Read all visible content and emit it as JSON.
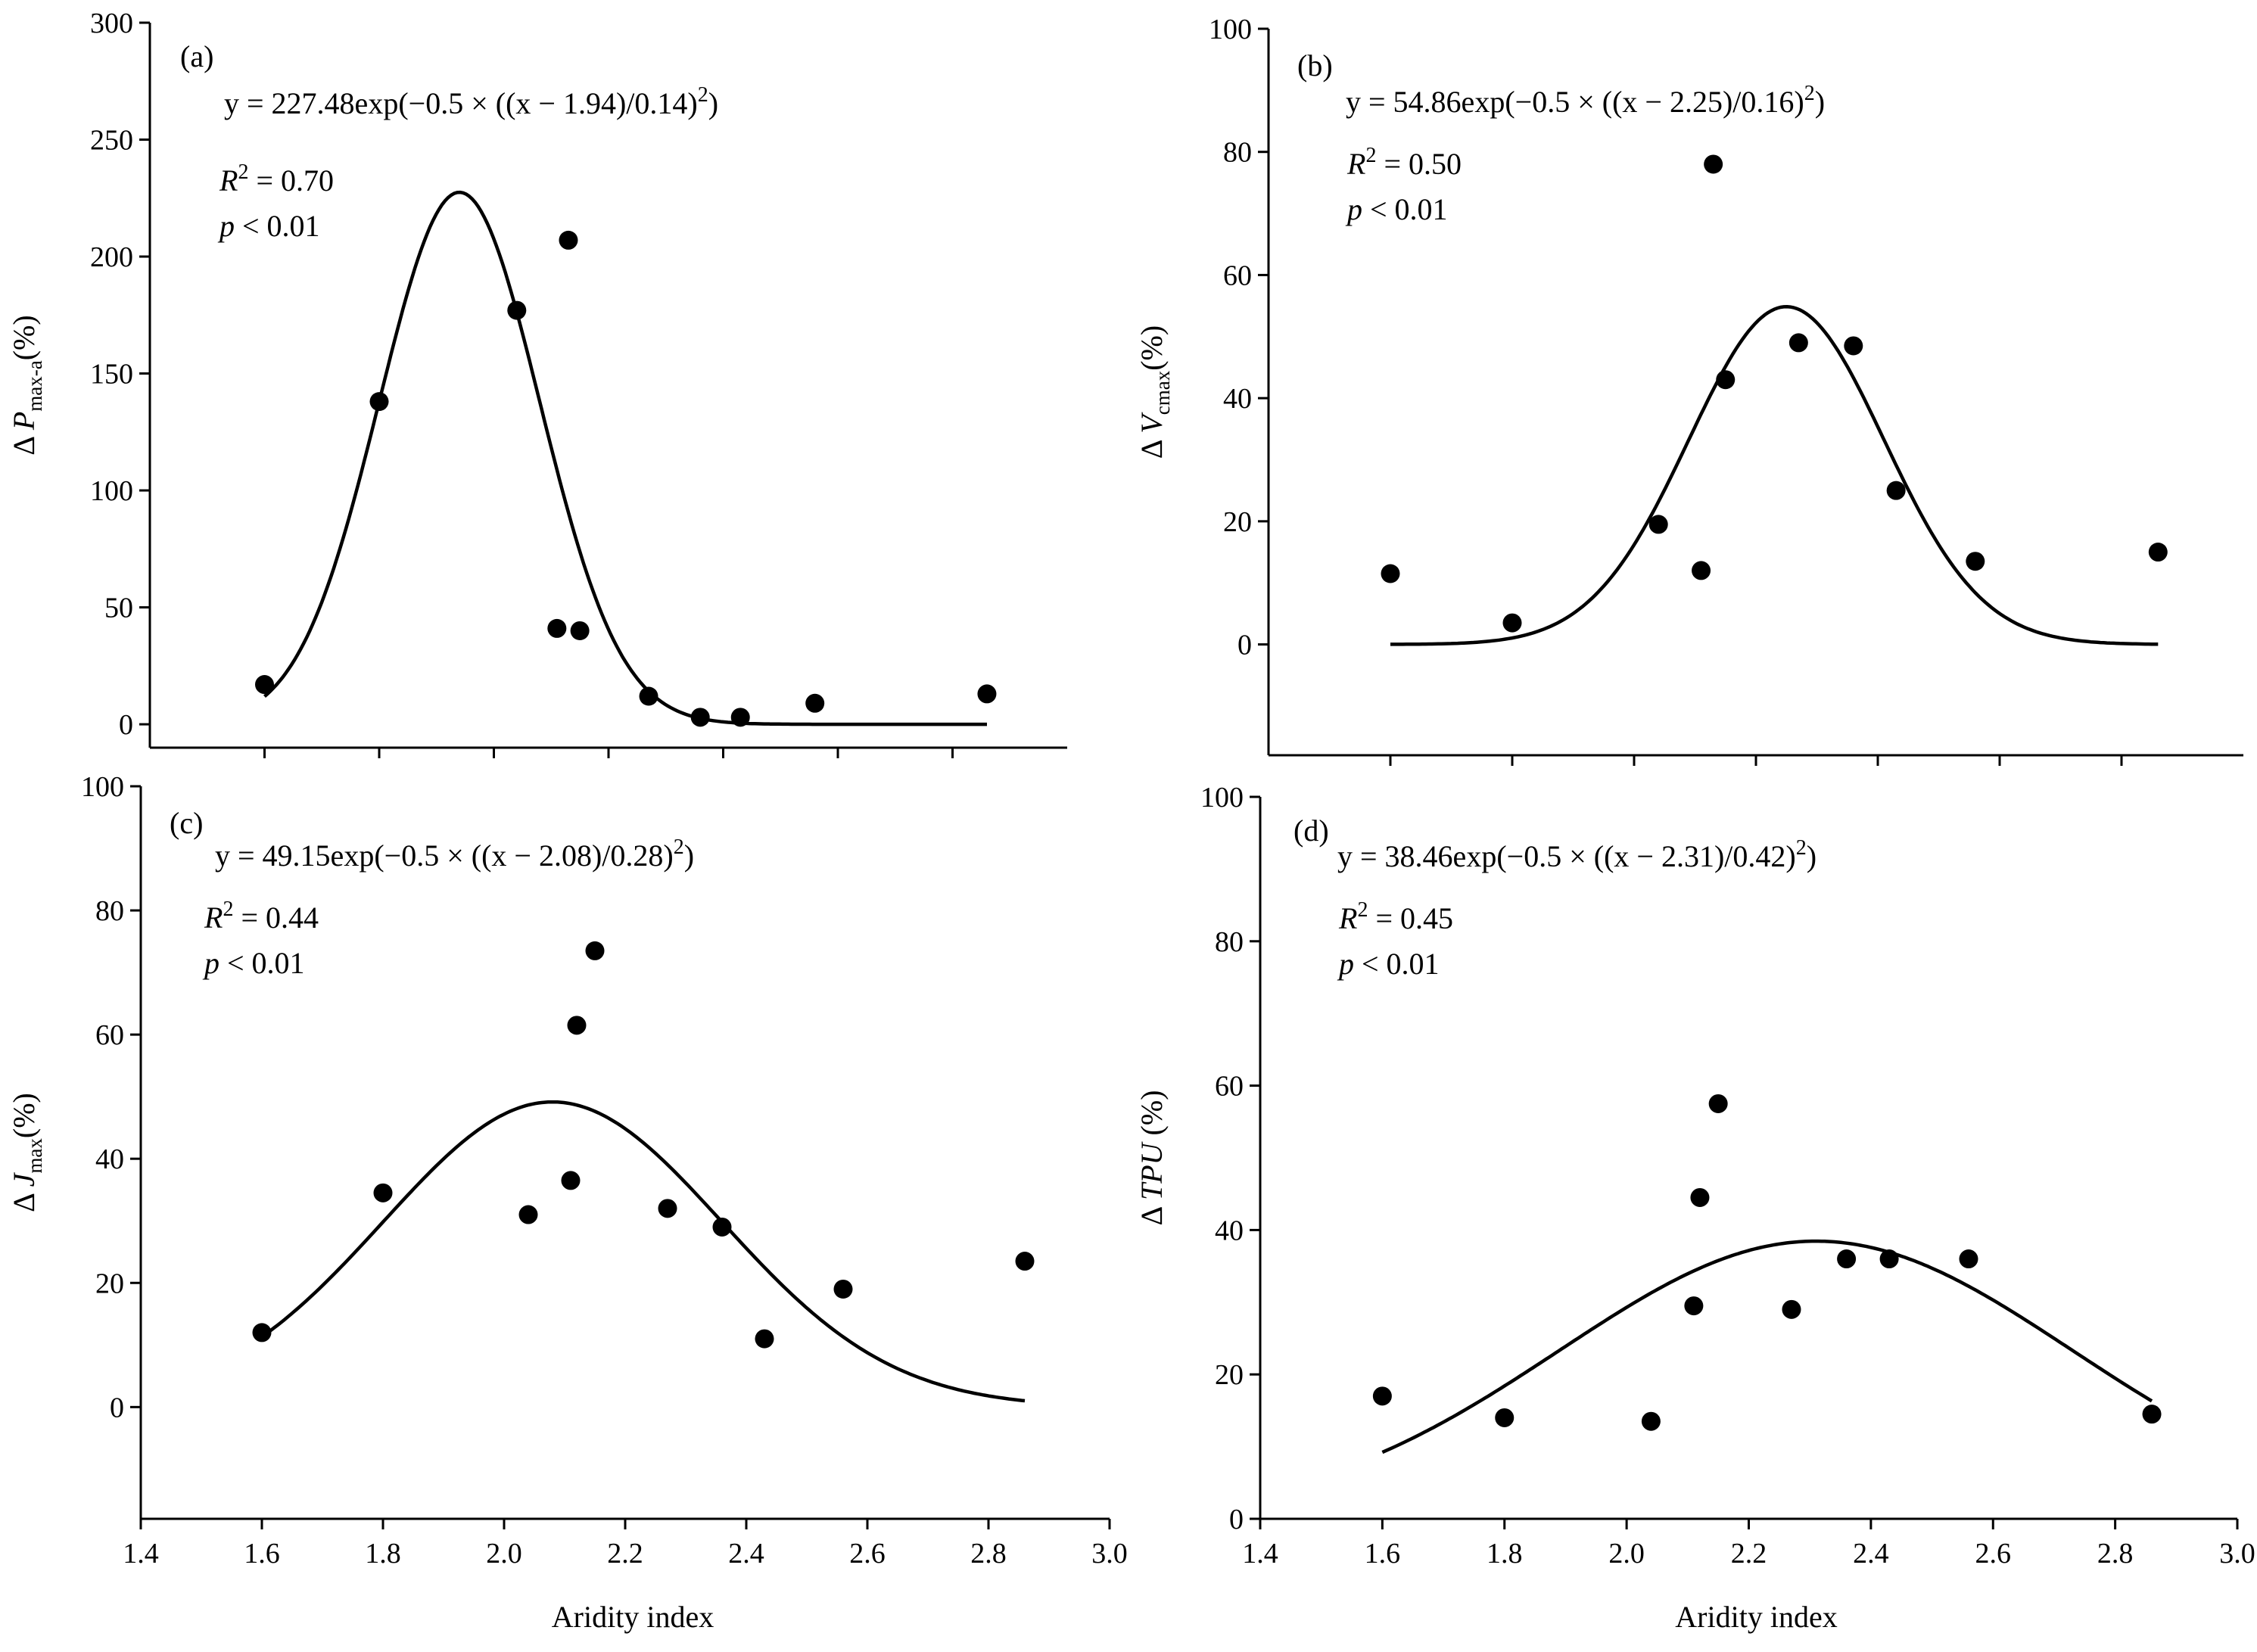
{
  "figure": {
    "x_axis_label": "Aridity index"
  },
  "chart_data": [
    {
      "type": "scatter",
      "panel": "(a)",
      "ylabel_symbol": "P",
      "ylabel_subscript": "max-a",
      "ylabel_unit": "(%)",
      "equation": "y = 227.48exp(−0.5 × ((x − 1.94)/0.14)",
      "equation_exponent": "2",
      "equation_close": ")",
      "r2_value": " = 0.70",
      "p_value": " < 0.01",
      "fit": {
        "a": 227.48,
        "b": 1.94,
        "c": 0.14,
        "x_start": 1.6,
        "x_end": 2.86
      },
      "xlim": [
        1.4,
        3.0
      ],
      "ylim": [
        -10,
        300
      ],
      "yticks": [
        0,
        50,
        100,
        150,
        200,
        250,
        300
      ],
      "ytick_labels": [
        "0",
        "50",
        "100",
        "150",
        "200",
        "250",
        "300"
      ],
      "xticks": [
        1.6,
        1.8,
        2.0,
        2.2,
        2.4,
        2.6,
        2.8
      ],
      "xtick_labels": [],
      "points": [
        [
          1.6,
          17
        ],
        [
          1.8,
          138
        ],
        [
          2.04,
          177
        ],
        [
          2.11,
          41
        ],
        [
          2.13,
          207
        ],
        [
          2.15,
          40
        ],
        [
          2.27,
          12
        ],
        [
          2.36,
          3
        ],
        [
          2.43,
          3
        ],
        [
          2.56,
          9
        ],
        [
          2.86,
          13
        ]
      ]
    },
    {
      "type": "scatter",
      "panel": "(b)",
      "ylabel_symbol": "V",
      "ylabel_subscript": "cmax",
      "ylabel_unit": "(%)",
      "equation": "y = 54.86exp(−0.5 × ((x − 2.25)/0.16)",
      "equation_exponent": "2",
      "equation_close": ")",
      "r2_value": " = 0.50",
      "p_value": " < 0.01",
      "fit": {
        "a": 54.86,
        "b": 2.25,
        "c": 0.16,
        "x_start": 1.6,
        "x_end": 2.86
      },
      "xlim": [
        1.4,
        3.0
      ],
      "ylim": [
        -18,
        100
      ],
      "yticks": [
        0,
        20,
        40,
        60,
        80,
        100
      ],
      "ytick_labels": [
        "0",
        "20",
        "40",
        "60",
        "80",
        "100"
      ],
      "xticks": [
        1.6,
        1.8,
        2.0,
        2.2,
        2.4,
        2.6,
        2.8
      ],
      "xtick_labels": [],
      "points": [
        [
          1.6,
          11.5
        ],
        [
          1.8,
          3.5
        ],
        [
          2.04,
          19.5
        ],
        [
          2.11,
          12
        ],
        [
          2.13,
          78
        ],
        [
          2.15,
          43
        ],
        [
          2.27,
          49
        ],
        [
          2.36,
          48.5
        ],
        [
          2.43,
          25
        ],
        [
          2.56,
          13.5
        ],
        [
          2.86,
          15
        ]
      ]
    },
    {
      "type": "scatter",
      "panel": "(c)",
      "ylabel_symbol": "J",
      "ylabel_subscript": "max",
      "ylabel_unit": "(%)",
      "equation": "y = 49.15exp(−0.5 × ((x − 2.08)/0.28)",
      "equation_exponent": "2",
      "equation_close": ")",
      "r2_value": " = 0.44",
      "p_value": " < 0.01",
      "fit": {
        "a": 49.15,
        "b": 2.08,
        "c": 0.28,
        "x_start": 1.6,
        "x_end": 2.86
      },
      "xlim": [
        1.4,
        3.0
      ],
      "ylim": [
        -18,
        100
      ],
      "yticks": [
        0,
        20,
        40,
        60,
        80,
        100
      ],
      "ytick_labels": [
        "0",
        "20",
        "40",
        "60",
        "80",
        "100"
      ],
      "xticks": [
        1.4,
        1.6,
        1.8,
        2.0,
        2.2,
        2.4,
        2.6,
        2.8,
        3.0
      ],
      "xtick_labels": [
        "1.4",
        "1.6",
        "1.8",
        "2.0",
        "2.2",
        "2.4",
        "2.6",
        "2.8",
        "3.0"
      ],
      "points": [
        [
          1.6,
          12
        ],
        [
          1.8,
          34.5
        ],
        [
          2.04,
          31
        ],
        [
          2.11,
          36.5
        ],
        [
          2.12,
          61.5
        ],
        [
          2.15,
          73.5
        ],
        [
          2.27,
          32
        ],
        [
          2.36,
          29
        ],
        [
          2.43,
          11
        ],
        [
          2.56,
          19
        ],
        [
          2.86,
          23.5
        ]
      ]
    },
    {
      "type": "scatter",
      "panel": "(d)",
      "ylabel_symbol": "TPU",
      "ylabel_subscript": "",
      "ylabel_unit": " (%)",
      "equation": "y = 38.46exp(−0.5 × ((x − 2.31)/0.42)",
      "equation_exponent": "2",
      "equation_close": ")",
      "r2_value": " = 0.45",
      "p_value": " < 0.01",
      "fit": {
        "a": 38.46,
        "b": 2.31,
        "c": 0.42,
        "x_start": 1.6,
        "x_end": 2.86
      },
      "xlim": [
        1.4,
        3.0
      ],
      "ylim": [
        0,
        100
      ],
      "yticks": [
        0,
        20,
        40,
        60,
        80,
        100
      ],
      "ytick_labels": [
        "0",
        "20",
        "40",
        "60",
        "80",
        "100"
      ],
      "xticks": [
        1.4,
        1.6,
        1.8,
        2.0,
        2.2,
        2.4,
        2.6,
        2.8,
        3.0
      ],
      "xtick_labels": [
        "1.4",
        "1.6",
        "1.8",
        "2.0",
        "2.2",
        "2.4",
        "2.6",
        "2.8",
        "3.0"
      ],
      "points": [
        [
          1.6,
          17
        ],
        [
          1.8,
          14
        ],
        [
          2.04,
          13.5
        ],
        [
          2.11,
          29.5
        ],
        [
          2.12,
          44.5
        ],
        [
          2.15,
          57.5
        ],
        [
          2.27,
          29
        ],
        [
          2.36,
          36
        ],
        [
          2.43,
          36
        ],
        [
          2.56,
          36
        ],
        [
          2.86,
          14.5
        ]
      ]
    }
  ]
}
